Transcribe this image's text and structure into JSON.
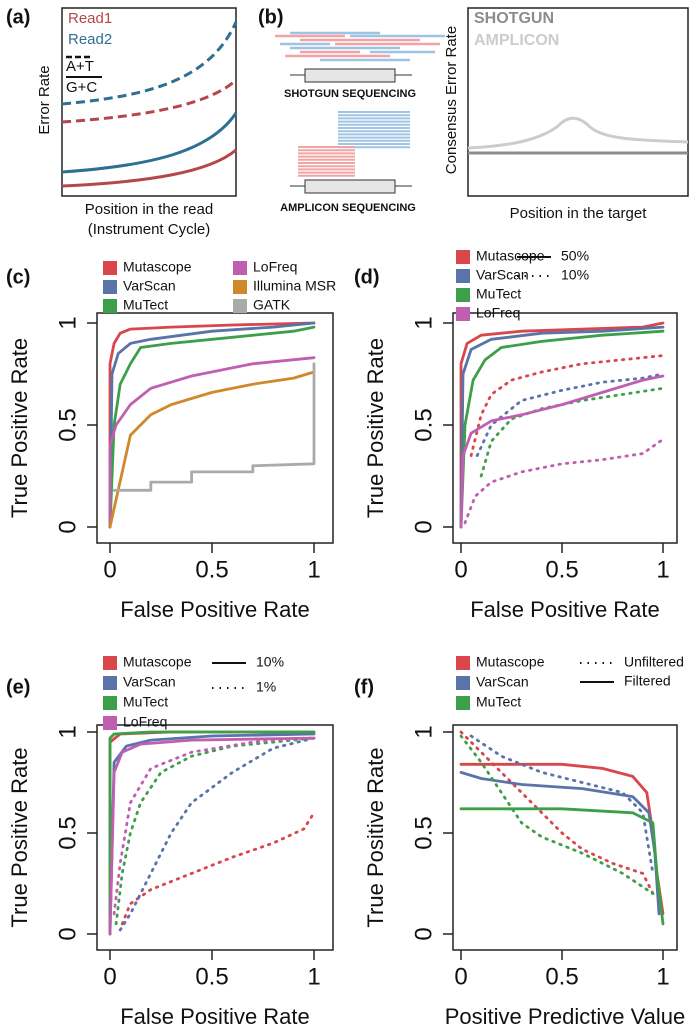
{
  "chart_data": [
    {
      "type": "schematic",
      "panel": "(a)",
      "ylabel": "Error Rate",
      "xlabel": [
        "Position in the read",
        "(Instrument Cycle)"
      ],
      "legend": [
        {
          "name": "Read1",
          "color": "#b5474b"
        },
        {
          "name": "Read2",
          "color": "#2f6f93"
        }
      ],
      "style_legend": [
        "A+T",
        "G+C"
      ]
    },
    {
      "type": "schematic",
      "panel": "(b)",
      "annotations": [
        "SHOTGUN SEQUENCING",
        "AMPLICON SEQUENCING"
      ],
      "ylabel": "Consensus Error Rate",
      "xlabel": "Position in the target",
      "legend": [
        {
          "name": "SHOTGUN",
          "color": "#8c8c8c"
        },
        {
          "name": "AMPLICON",
          "color": "#cccccc"
        }
      ]
    },
    {
      "type": "line",
      "panel": "(c)",
      "xlabel": "False Positive Rate",
      "ylabel": "True Positive Rate",
      "xlim": [
        0,
        1
      ],
      "ylim": [
        0,
        1
      ],
      "xticks": [
        0,
        0.5,
        1
      ],
      "yticks": [
        0,
        0.5,
        1
      ],
      "series": [
        {
          "name": "Mutascope",
          "color": "#d9464b",
          "x": [
            0,
            0,
            0.02,
            0.05,
            0.1,
            0.3,
            0.6,
            1
          ],
          "y": [
            0,
            0.8,
            0.9,
            0.95,
            0.97,
            0.98,
            0.99,
            1
          ]
        },
        {
          "name": "VarScan",
          "color": "#5a73a8",
          "x": [
            0,
            0.01,
            0.04,
            0.1,
            0.2,
            0.5,
            0.8,
            1
          ],
          "y": [
            0,
            0.75,
            0.85,
            0.9,
            0.92,
            0.96,
            0.98,
            1
          ]
        },
        {
          "name": "MuTect",
          "color": "#3d9f4a",
          "x": [
            0,
            0.02,
            0.05,
            0.1,
            0.15,
            0.3,
            0.6,
            0.9,
            1
          ],
          "y": [
            0,
            0.5,
            0.7,
            0.8,
            0.88,
            0.9,
            0.93,
            0.96,
            0.98
          ]
        },
        {
          "name": "LoFreq",
          "color": "#c05fb2",
          "x": [
            0,
            0,
            0.03,
            0.1,
            0.2,
            0.4,
            0.7,
            1
          ],
          "y": [
            0,
            0.4,
            0.5,
            0.6,
            0.68,
            0.74,
            0.8,
            0.83
          ]
        },
        {
          "name": "Illumina MSR",
          "color": "#d0882a",
          "x": [
            0,
            0.1,
            0.2,
            0.3,
            0.5,
            0.7,
            0.9,
            1
          ],
          "y": [
            0,
            0.45,
            0.55,
            0.6,
            0.66,
            0.7,
            0.73,
            0.76
          ]
        },
        {
          "name": "GATK",
          "color": "#aaaaaa",
          "x": [
            0.02,
            0.2,
            0.2,
            0.4,
            0.4,
            0.7,
            0.7,
            1,
            1
          ],
          "y": [
            0.18,
            0.18,
            0.22,
            0.22,
            0.27,
            0.27,
            0.3,
            0.31,
            0.8
          ]
        }
      ]
    },
    {
      "type": "line",
      "panel": "(d)",
      "xlabel": "False Positive Rate",
      "ylabel": "True Positive Rate",
      "xlim": [
        0,
        1
      ],
      "ylim": [
        0,
        1
      ],
      "xticks": [
        0,
        0.5,
        1
      ],
      "yticks": [
        0,
        0.5,
        1
      ],
      "line_styles": [
        {
          "label": "50%",
          "dash": "solid"
        },
        {
          "label": "10%",
          "dash": "dotted"
        }
      ],
      "series": [
        {
          "name": "Mutascope",
          "color": "#d9464b",
          "curves": [
            {
              "x": [
                0,
                0,
                0.03,
                0.1,
                0.3,
                0.6,
                0.9,
                1
              ],
              "y": [
                0,
                0.8,
                0.9,
                0.94,
                0.96,
                0.97,
                0.98,
                1
              ]
            },
            {
              "x": [
                0.05,
                0.1,
                0.15,
                0.25,
                0.4,
                0.6,
                0.8,
                1
              ],
              "y": [
                0.35,
                0.55,
                0.65,
                0.72,
                0.76,
                0.8,
                0.82,
                0.84
              ]
            }
          ]
        },
        {
          "name": "VarScan",
          "color": "#5a73a8",
          "curves": [
            {
              "x": [
                0,
                0.01,
                0.05,
                0.15,
                0.4,
                0.7,
                1
              ],
              "y": [
                0,
                0.75,
                0.87,
                0.92,
                0.95,
                0.96,
                0.98
              ]
            },
            {
              "x": [
                0.08,
                0.15,
                0.3,
                0.5,
                0.7,
                0.9,
                1
              ],
              "y": [
                0.35,
                0.5,
                0.62,
                0.67,
                0.71,
                0.73,
                0.75
              ]
            }
          ]
        },
        {
          "name": "MuTect",
          "color": "#3d9f4a",
          "curves": [
            {
              "x": [
                0,
                0.02,
                0.06,
                0.12,
                0.2,
                0.4,
                0.7,
                1
              ],
              "y": [
                0,
                0.5,
                0.72,
                0.82,
                0.88,
                0.91,
                0.94,
                0.96
              ]
            },
            {
              "x": [
                0.1,
                0.15,
                0.25,
                0.4,
                0.6,
                0.8,
                1
              ],
              "y": [
                0.25,
                0.42,
                0.53,
                0.58,
                0.62,
                0.65,
                0.68
              ]
            }
          ]
        },
        {
          "name": "LoFreq",
          "color": "#c05fb2",
          "curves": [
            {
              "x": [
                0,
                0.01,
                0.05,
                0.15,
                0.3,
                0.5,
                0.7,
                0.9,
                1
              ],
              "y": [
                0,
                0.35,
                0.46,
                0.52,
                0.55,
                0.6,
                0.66,
                0.72,
                0.74
              ]
            },
            {
              "x": [
                0.02,
                0.07,
                0.15,
                0.3,
                0.5,
                0.7,
                0.9,
                1
              ],
              "y": [
                0.02,
                0.15,
                0.22,
                0.27,
                0.31,
                0.33,
                0.36,
                0.43
              ]
            }
          ]
        }
      ]
    },
    {
      "type": "line",
      "panel": "(e)",
      "xlabel": "False Positive Rate",
      "ylabel": "True Positive Rate",
      "xlim": [
        0,
        1
      ],
      "ylim": [
        0,
        1
      ],
      "xticks": [
        0,
        0.5,
        1
      ],
      "yticks": [
        0,
        0.5,
        1
      ],
      "line_styles": [
        {
          "label": "10%",
          "dash": "solid"
        },
        {
          "label": "1%",
          "dash": "dotted"
        }
      ],
      "series": [
        {
          "name": "Mutascope",
          "color": "#d9464b",
          "curves": [
            {
              "x": [
                0,
                0,
                0.05,
                0.3,
                1
              ],
              "y": [
                0,
                0.95,
                0.99,
                1,
                1
              ]
            },
            {
              "x": [
                0.06,
                0.1,
                0.2,
                0.4,
                0.6,
                0.8,
                0.95,
                1
              ],
              "y": [
                0.05,
                0.15,
                0.22,
                0.3,
                0.38,
                0.45,
                0.52,
                0.6
              ]
            }
          ]
        },
        {
          "name": "VarScan",
          "color": "#5a73a8",
          "curves": [
            {
              "x": [
                0,
                0.02,
                0.08,
                0.2,
                0.5,
                1
              ],
              "y": [
                0,
                0.85,
                0.93,
                0.96,
                0.98,
                0.99
              ]
            },
            {
              "x": [
                0.05,
                0.1,
                0.2,
                0.3,
                0.4,
                0.6,
                0.8,
                1
              ],
              "y": [
                0.02,
                0.1,
                0.3,
                0.5,
                0.65,
                0.8,
                0.92,
                0.97
              ]
            }
          ]
        },
        {
          "name": "MuTect",
          "color": "#3d9f4a",
          "curves": [
            {
              "x": [
                0,
                0,
                0.02,
                0.2,
                1
              ],
              "y": [
                0,
                0.97,
                0.99,
                1,
                1
              ]
            },
            {
              "x": [
                0.03,
                0.06,
                0.1,
                0.15,
                0.25,
                0.4,
                0.6,
                1
              ],
              "y": [
                0.05,
                0.3,
                0.5,
                0.65,
                0.8,
                0.88,
                0.93,
                0.97
              ]
            }
          ]
        },
        {
          "name": "LoFreq",
          "color": "#c05fb2",
          "curves": [
            {
              "x": [
                0,
                0.02,
                0.06,
                0.15,
                0.4,
                1
              ],
              "y": [
                0,
                0.8,
                0.9,
                0.94,
                0.96,
                0.97
              ]
            },
            {
              "x": [
                0.02,
                0.05,
                0.1,
                0.2,
                0.4,
                0.7,
                0.95,
                1
              ],
              "y": [
                0.1,
                0.35,
                0.65,
                0.82,
                0.9,
                0.95,
                0.97,
                0.97
              ]
            }
          ]
        }
      ]
    },
    {
      "type": "line",
      "panel": "(f)",
      "xlabel": "Positive Predictive Value",
      "ylabel": "True Positive Rate",
      "xlim": [
        0,
        1
      ],
      "ylim": [
        0,
        1
      ],
      "xticks": [
        0,
        0.5,
        1
      ],
      "yticks": [
        0,
        0.5,
        1
      ],
      "line_styles": [
        {
          "label": "Unfiltered",
          "dash": "dotted"
        },
        {
          "label": "Filtered",
          "dash": "solid"
        }
      ],
      "series": [
        {
          "name": "Mutascope",
          "color": "#d9464b",
          "curves": [
            {
              "x": [
                0,
                0.1,
                0.2,
                0.3,
                0.4,
                0.5,
                0.6,
                0.75,
                0.9,
                0.95
              ],
              "y": [
                1,
                0.9,
                0.8,
                0.7,
                0.6,
                0.5,
                0.42,
                0.35,
                0.3,
                0.2
              ]
            },
            {
              "x": [
                0,
                0.5,
                0.7,
                0.85,
                0.92,
                0.95,
                0.97,
                1
              ],
              "y": [
                0.84,
                0.84,
                0.82,
                0.78,
                0.7,
                0.5,
                0.3,
                0.1
              ]
            }
          ]
        },
        {
          "name": "VarScan",
          "color": "#5a73a8",
          "curves": [
            {
              "x": [
                0.05,
                0.2,
                0.4,
                0.6,
                0.8,
                0.9,
                0.95
              ],
              "y": [
                0.98,
                0.88,
                0.8,
                0.75,
                0.7,
                0.6,
                0.3
              ]
            },
            {
              "x": [
                0,
                0.1,
                0.3,
                0.6,
                0.85,
                0.93,
                0.96,
                0.98
              ],
              "y": [
                0.8,
                0.77,
                0.74,
                0.72,
                0.68,
                0.6,
                0.4,
                0.1
              ]
            }
          ]
        },
        {
          "name": "MuTect",
          "color": "#3d9f4a",
          "curves": [
            {
              "x": [
                0,
                0.1,
                0.2,
                0.3,
                0.4,
                0.6,
                0.8,
                0.95
              ],
              "y": [
                0.98,
                0.85,
                0.7,
                0.55,
                0.48,
                0.4,
                0.3,
                0.2
              ]
            },
            {
              "x": [
                0,
                0.5,
                0.85,
                0.95,
                0.97,
                1
              ],
              "y": [
                0.62,
                0.62,
                0.6,
                0.55,
                0.3,
                0.05
              ]
            }
          ]
        }
      ]
    }
  ]
}
